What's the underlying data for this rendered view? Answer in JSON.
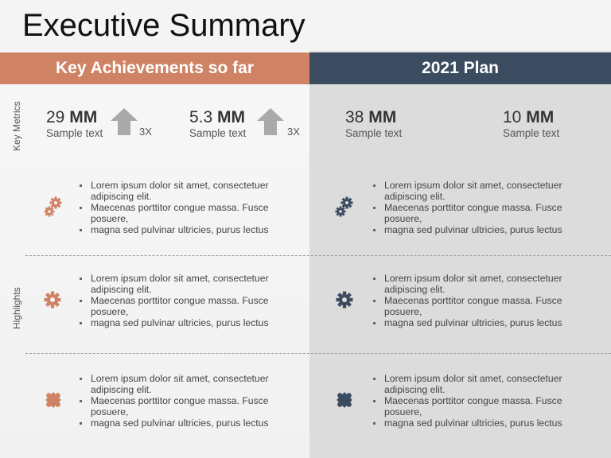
{
  "title": "Executive Summary",
  "headers": {
    "left": "Key Achievements so far",
    "right": "2021 Plan"
  },
  "side_labels": {
    "metrics": "Key Metrics",
    "highlights": "Highlights"
  },
  "metrics": [
    {
      "value": "29",
      "unit": "MM",
      "sub": "Sample text",
      "factor": "3X"
    },
    {
      "value": "5.3",
      "unit": "MM",
      "sub": "Sample text",
      "factor": "3X"
    },
    {
      "value": "38",
      "unit": "MM",
      "sub": "Sample text"
    },
    {
      "value": "10",
      "unit": "MM",
      "sub": "Sample text"
    }
  ],
  "bullets": [
    "Lorem ipsum dolor sit amet, consectetuer adipiscing elit.",
    "Maecenas porttitor congue massa. Fusce posuere,",
    "magna sed pulvinar ultricies, purus lectus"
  ],
  "colors": {
    "accent_left": "#cf8264",
    "accent_right": "#3b4c60"
  },
  "icons": {
    "left": [
      "gears-icon",
      "gear-icon",
      "puzzle-icon"
    ],
    "right": [
      "gears-icon",
      "gear-icon",
      "puzzle-icon"
    ]
  }
}
